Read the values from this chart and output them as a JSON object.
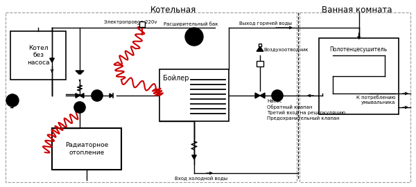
{
  "title_kotelnaya": "Котельная",
  "title_vannaya": "Ванная комната",
  "label_kotel": "Котел\nбез\nнасоса",
  "label_radiator": "Радиаторное\nотопление",
  "label_boiler": "Бойлер",
  "label_elektro": "Электропровод 220v",
  "label_rashiritel": "Расширительный бак",
  "label_vyhod": "Выход горячей воды",
  "label_vozduh": "Воздухоотводчик",
  "label_nasos": "Насос",
  "label_obratny": "Обратный клапан",
  "label_tretiy": "Третий вход на рециркуляцию",
  "label_predohranit": "Предохранительный клапан",
  "label_vhod_holod": "Вход холодной воды",
  "label_polotentsesushitel": "Полотенцесушитель",
  "label_potreblenie": "К потреблению\nумывальника",
  "bg_color": "#ffffff",
  "line_color": "#000000",
  "red_color": "#cc0000",
  "dash_color": "#999999"
}
